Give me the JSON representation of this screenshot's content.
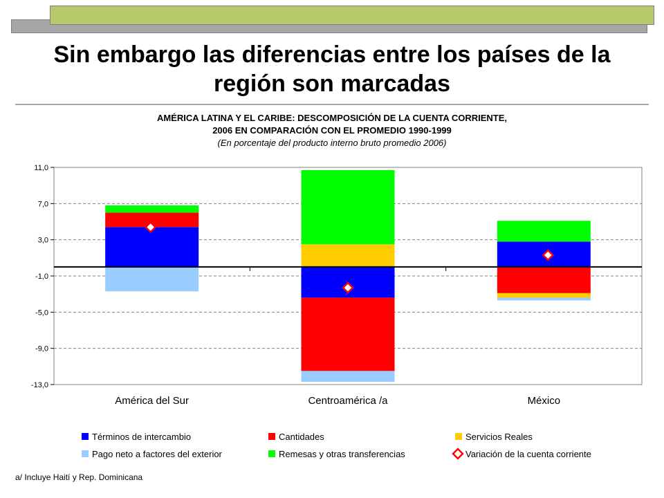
{
  "slide": {
    "title_line1": "Sin embargo las diferencias entre los países de la",
    "title_line2": "región son marcadas",
    "footnote": "a/  Incluye Haití y Rep. Dominicana"
  },
  "chart_data": {
    "type": "bar",
    "stacked": true,
    "title_line1": "AMÉRICA LATINA Y EL CARIBE: DESCOMPOSICIÓN DE LA CUENTA CORRIENTE,",
    "title_line2": "2006 EN COMPARACIÓN CON EL PROMEDIO 1990-1999",
    "subtitle": "(En porcentaje del producto interno bruto promedio 2006)",
    "categories": [
      "América del Sur",
      "Centroamérica /a",
      "México"
    ],
    "ylim": [
      -13.0,
      11.0
    ],
    "yticks": [
      "11,0",
      "7,0",
      "3,0",
      "-1,0",
      "-5,0",
      "-9,0",
      "-13,0"
    ],
    "ytick_values": [
      11,
      7,
      3,
      -1,
      -5,
      -9,
      -13
    ],
    "grid": true,
    "legend_position": "bottom",
    "series": [
      {
        "name": "Términos de intercambio",
        "color": "#0000ff",
        "values": [
          4.4,
          -3.4,
          2.8
        ]
      },
      {
        "name": "Cantidades",
        "color": "#ff0000",
        "values": [
          1.6,
          -8.1,
          -2.9
        ]
      },
      {
        "name": "Servicios Reales",
        "color": "#ffcc00",
        "values": [
          0.0,
          2.5,
          -0.5
        ]
      },
      {
        "name": "Pago neto a factores del exterior",
        "color": "#99ccff",
        "values": [
          -2.7,
          -1.2,
          -0.3
        ]
      },
      {
        "name": "Remesas y otras transferencias",
        "color": "#00ff00",
        "values": [
          0.8,
          8.2,
          2.3
        ]
      }
    ],
    "markers": {
      "name": "Variación de la cuenta corriente",
      "color": "#ff0000",
      "values": [
        4.4,
        -2.3,
        1.3
      ]
    }
  }
}
